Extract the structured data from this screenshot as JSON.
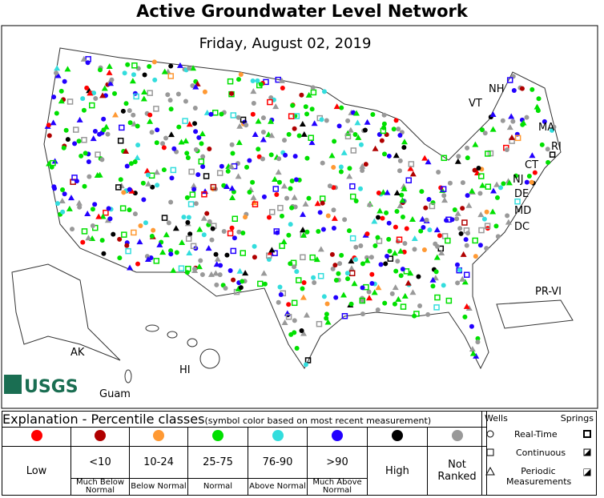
{
  "header": {
    "title": "Active Groundwater Level Network"
  },
  "map": {
    "date": "Friday, August 02, 2019",
    "logo": "USGS",
    "labels": [
      "NH",
      "VT",
      "MA",
      "RI",
      "CT",
      "NJ",
      "DE",
      "MD",
      "DC",
      "PR-VI",
      "AK",
      "HI",
      "Guam"
    ]
  },
  "legend": {
    "title": "Explanation - Percentile classes",
    "note": "(symbol color based on most recent measurement)",
    "classes": [
      {
        "name": "Low",
        "color": "#ff0000"
      },
      {
        "range": "<10",
        "description": "Much Below Normal",
        "color": "#b00000"
      },
      {
        "range": "10-24",
        "description": "Below Normal",
        "color": "#ff9933"
      },
      {
        "range": "25-75",
        "description": "Normal",
        "color": "#00e000"
      },
      {
        "range": "76-90",
        "description": "Above Normal",
        "color": "#33dddd"
      },
      {
        "range": ">90",
        "description": "Much Above Normal",
        "color": "#2200ff"
      },
      {
        "name": "High",
        "color": "#000000"
      },
      {
        "name": "Not Ranked",
        "color": "#999999"
      }
    ],
    "wells": "Wells",
    "springs": "Springs",
    "types": [
      "Real-Time",
      "Continuous",
      "Periodic Measurements"
    ]
  }
}
